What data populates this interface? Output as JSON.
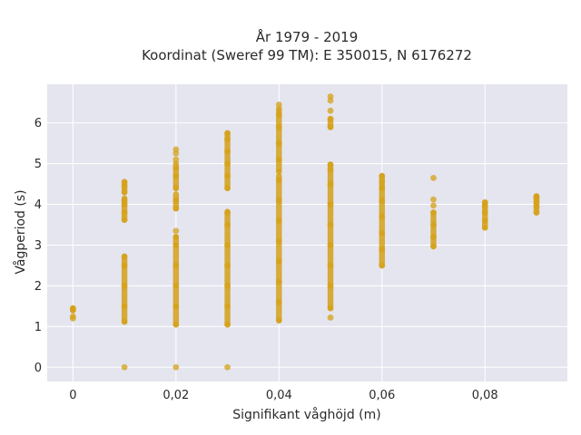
{
  "chart_data": {
    "type": "scatter",
    "title_line1": "År 1979 - 2019",
    "title_line2": "Koordinat (Sweref 99 TM): E 350015, N 6176272",
    "xlabel": "Signifikant våghöjd (m)",
    "ylabel": "Vågperiod (s)",
    "xlim": [
      -0.005,
      0.096
    ],
    "ylim": [
      -0.35,
      6.95
    ],
    "xticks": [
      0,
      0.02,
      0.04,
      0.06,
      0.08
    ],
    "xtick_labels": [
      "0",
      "0,02",
      "0,04",
      "0,06",
      "0,08"
    ],
    "yticks": [
      0,
      1,
      2,
      3,
      4,
      5,
      6
    ],
    "ytick_labels": [
      "0",
      "1",
      "2",
      "3",
      "4",
      "5",
      "6"
    ],
    "grid": true,
    "legend": "none",
    "colors": {
      "marker": "#d4a017",
      "plot_bg": "#e5e5ef",
      "grid": "#ffffff"
    },
    "series": [
      {
        "points": [
          {
            "x": 0,
            "y": 1.2
          },
          {
            "x": 0,
            "y": 1.25
          },
          {
            "x": 0,
            "y": 1.4
          },
          {
            "x": 0,
            "y": 1.45
          },
          {
            "x": 0.01,
            "y": 0.0
          },
          {
            "x": 0.01,
            "y": 1.12
          },
          {
            "x": 0.01,
            "y": 1.5
          },
          {
            "x": 0.01,
            "y": 2.0
          },
          {
            "x": 0.01,
            "y": 2.5
          },
          {
            "x": 0.01,
            "y": 2.72
          },
          {
            "x": 0.01,
            "y": 3.62
          },
          {
            "x": 0.01,
            "y": 3.8
          },
          {
            "x": 0.01,
            "y": 4.0
          },
          {
            "x": 0.01,
            "y": 4.1
          },
          {
            "x": 0.01,
            "y": 4.3
          },
          {
            "x": 0.01,
            "y": 4.45
          },
          {
            "x": 0.01,
            "y": 4.55
          },
          {
            "x": 0.02,
            "y": 0.0
          },
          {
            "x": 0.02,
            "y": 1.05
          },
          {
            "x": 0.02,
            "y": 1.5
          },
          {
            "x": 0.02,
            "y": 2.0
          },
          {
            "x": 0.02,
            "y": 2.5
          },
          {
            "x": 0.02,
            "y": 3.0
          },
          {
            "x": 0.02,
            "y": 3.2
          },
          {
            "x": 0.02,
            "y": 3.35
          },
          {
            "x": 0.02,
            "y": 3.9
          },
          {
            "x": 0.02,
            "y": 4.1
          },
          {
            "x": 0.02,
            "y": 4.4
          },
          {
            "x": 0.02,
            "y": 4.7
          },
          {
            "x": 0.02,
            "y": 4.9
          },
          {
            "x": 0.02,
            "y": 5.1
          },
          {
            "x": 0.02,
            "y": 5.25
          },
          {
            "x": 0.02,
            "y": 5.35
          },
          {
            "x": 0.03,
            "y": 0.0
          },
          {
            "x": 0.03,
            "y": 1.05
          },
          {
            "x": 0.03,
            "y": 1.5
          },
          {
            "x": 0.03,
            "y": 2.0
          },
          {
            "x": 0.03,
            "y": 2.5
          },
          {
            "x": 0.03,
            "y": 3.0
          },
          {
            "x": 0.03,
            "y": 3.5
          },
          {
            "x": 0.03,
            "y": 3.8
          },
          {
            "x": 0.03,
            "y": 4.4
          },
          {
            "x": 0.03,
            "y": 4.7
          },
          {
            "x": 0.03,
            "y": 5.0
          },
          {
            "x": 0.03,
            "y": 5.3
          },
          {
            "x": 0.03,
            "y": 5.6
          },
          {
            "x": 0.03,
            "y": 5.75
          },
          {
            "x": 0.04,
            "y": 1.15
          },
          {
            "x": 0.04,
            "y": 1.6
          },
          {
            "x": 0.04,
            "y": 2.1
          },
          {
            "x": 0.04,
            "y": 2.6
          },
          {
            "x": 0.04,
            "y": 3.1
          },
          {
            "x": 0.04,
            "y": 3.6
          },
          {
            "x": 0.04,
            "y": 4.1
          },
          {
            "x": 0.04,
            "y": 4.6
          },
          {
            "x": 0.04,
            "y": 4.8
          },
          {
            "x": 0.04,
            "y": 5.1
          },
          {
            "x": 0.04,
            "y": 5.5
          },
          {
            "x": 0.04,
            "y": 5.9
          },
          {
            "x": 0.04,
            "y": 6.2
          },
          {
            "x": 0.04,
            "y": 6.35
          },
          {
            "x": 0.04,
            "y": 6.45
          },
          {
            "x": 0.05,
            "y": 1.22
          },
          {
            "x": 0.05,
            "y": 1.45
          },
          {
            "x": 0.05,
            "y": 2.0
          },
          {
            "x": 0.05,
            "y": 2.5
          },
          {
            "x": 0.05,
            "y": 3.0
          },
          {
            "x": 0.05,
            "y": 3.5
          },
          {
            "x": 0.05,
            "y": 4.0
          },
          {
            "x": 0.05,
            "y": 4.5
          },
          {
            "x": 0.05,
            "y": 4.85
          },
          {
            "x": 0.05,
            "y": 4.98
          },
          {
            "x": 0.05,
            "y": 5.9
          },
          {
            "x": 0.05,
            "y": 6.1
          },
          {
            "x": 0.05,
            "y": 6.3
          },
          {
            "x": 0.05,
            "y": 6.55
          },
          {
            "x": 0.05,
            "y": 6.65
          },
          {
            "x": 0.06,
            "y": 2.5
          },
          {
            "x": 0.06,
            "y": 2.9
          },
          {
            "x": 0.06,
            "y": 3.3
          },
          {
            "x": 0.06,
            "y": 3.7
          },
          {
            "x": 0.06,
            "y": 4.1
          },
          {
            "x": 0.06,
            "y": 4.4
          },
          {
            "x": 0.06,
            "y": 4.55
          },
          {
            "x": 0.06,
            "y": 4.7
          },
          {
            "x": 0.07,
            "y": 2.97
          },
          {
            "x": 0.07,
            "y": 3.2
          },
          {
            "x": 0.07,
            "y": 3.5
          },
          {
            "x": 0.07,
            "y": 3.8
          },
          {
            "x": 0.07,
            "y": 3.97
          },
          {
            "x": 0.07,
            "y": 4.12
          },
          {
            "x": 0.07,
            "y": 4.65
          },
          {
            "x": 0.08,
            "y": 3.43
          },
          {
            "x": 0.08,
            "y": 3.6
          },
          {
            "x": 0.08,
            "y": 3.8
          },
          {
            "x": 0.08,
            "y": 3.95
          },
          {
            "x": 0.08,
            "y": 4.05
          },
          {
            "x": 0.09,
            "y": 3.8
          },
          {
            "x": 0.09,
            "y": 3.95
          },
          {
            "x": 0.09,
            "y": 4.05
          },
          {
            "x": 0.09,
            "y": 4.15
          },
          {
            "x": 0.09,
            "y": 4.2
          }
        ],
        "ranges": [
          {
            "x": 0,
            "y0": 1.4,
            "y1": 1.45
          },
          {
            "x": 0.01,
            "y0": 1.12,
            "y1": 2.72
          },
          {
            "x": 0.01,
            "y0": 3.62,
            "y1": 4.15
          },
          {
            "x": 0.01,
            "y0": 4.3,
            "y1": 4.55
          },
          {
            "x": 0.02,
            "y0": 1.05,
            "y1": 3.2
          },
          {
            "x": 0.02,
            "y0": 3.9,
            "y1": 4.25
          },
          {
            "x": 0.02,
            "y0": 4.4,
            "y1": 5.0
          },
          {
            "x": 0.03,
            "y0": 1.05,
            "y1": 3.82
          },
          {
            "x": 0.03,
            "y0": 4.4,
            "y1": 5.75
          },
          {
            "x": 0.04,
            "y0": 1.15,
            "y1": 4.7
          },
          {
            "x": 0.04,
            "y0": 4.85,
            "y1": 6.3
          },
          {
            "x": 0.05,
            "y0": 1.45,
            "y1": 4.98
          },
          {
            "x": 0.05,
            "y0": 5.9,
            "y1": 6.1
          },
          {
            "x": 0.06,
            "y0": 2.5,
            "y1": 4.7
          },
          {
            "x": 0.07,
            "y0": 2.97,
            "y1": 3.8
          },
          {
            "x": 0.08,
            "y0": 3.43,
            "y1": 4.05
          },
          {
            "x": 0.09,
            "y0": 3.8,
            "y1": 4.2
          }
        ]
      }
    ]
  }
}
